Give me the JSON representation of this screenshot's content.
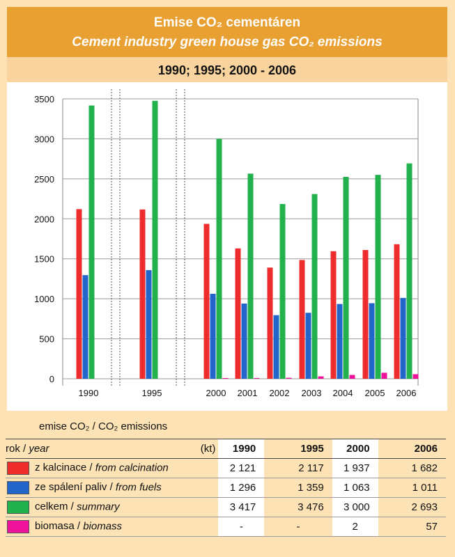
{
  "header": {
    "title_cz": "Emise CO₂ cementáren",
    "title_en": "Cement industry green house gas CO₂ emissions",
    "period": "1990; 1995; 2000 - 2006"
  },
  "chart_data": {
    "type": "bar",
    "categories": [
      "1990",
      "1995",
      "2000",
      "2001",
      "2002",
      "2003",
      "2004",
      "2005",
      "2006"
    ],
    "series": [
      {
        "name": "z kalcinace / from calcination",
        "color": "#ee2c2c",
        "values": [
          2121,
          2117,
          1937,
          1630,
          1390,
          1485,
          1595,
          1610,
          1682
        ]
      },
      {
        "name": "ze spálení paliv / from fuels",
        "color": "#2266cc",
        "values": [
          1296,
          1359,
          1063,
          940,
          795,
          825,
          935,
          945,
          1011
        ]
      },
      {
        "name": "celkem / summary",
        "color": "#22b14c",
        "values": [
          3417,
          3476,
          3000,
          2565,
          2185,
          2310,
          2525,
          2550,
          2693
        ]
      },
      {
        "name": "biomasa / biomass",
        "color": "#ee1199",
        "values": [
          0,
          0,
          2,
          5,
          12,
          30,
          48,
          75,
          57
        ]
      }
    ],
    "ylim": [
      0,
      3500
    ],
    "yticks": [
      "0",
      "500",
      "1000",
      "1500",
      "2000",
      "2500",
      "3000",
      "3500"
    ],
    "grid": true,
    "title": "",
    "xlabel": "",
    "ylabel": ""
  },
  "table": {
    "caption": "emise CO₂ / CO₂ emissions",
    "header_label": "rok / ",
    "header_label_it": "year",
    "unit": "(kt)",
    "years": [
      "1990",
      "1995",
      "2000",
      "2006"
    ],
    "rows": [
      {
        "label": "z kalcinace / ",
        "label_it": "from calcination",
        "color": "#ee2c2c",
        "values": [
          "2 121",
          "2 117",
          "1 937",
          "1 682"
        ]
      },
      {
        "label": "ze spálení paliv / ",
        "label_it": "from fuels",
        "color": "#2266cc",
        "values": [
          "1 296",
          "1 359",
          "1 063",
          "1 011"
        ]
      },
      {
        "label": "celkem / ",
        "label_it": "summary",
        "color": "#22b14c",
        "values": [
          "3 417",
          "3 476",
          "3 000",
          "2 693"
        ]
      },
      {
        "label": "biomasa / ",
        "label_it": "biomass",
        "color": "#ee1199",
        "values": [
          "-",
          "-",
          "2",
          "57"
        ]
      }
    ]
  }
}
